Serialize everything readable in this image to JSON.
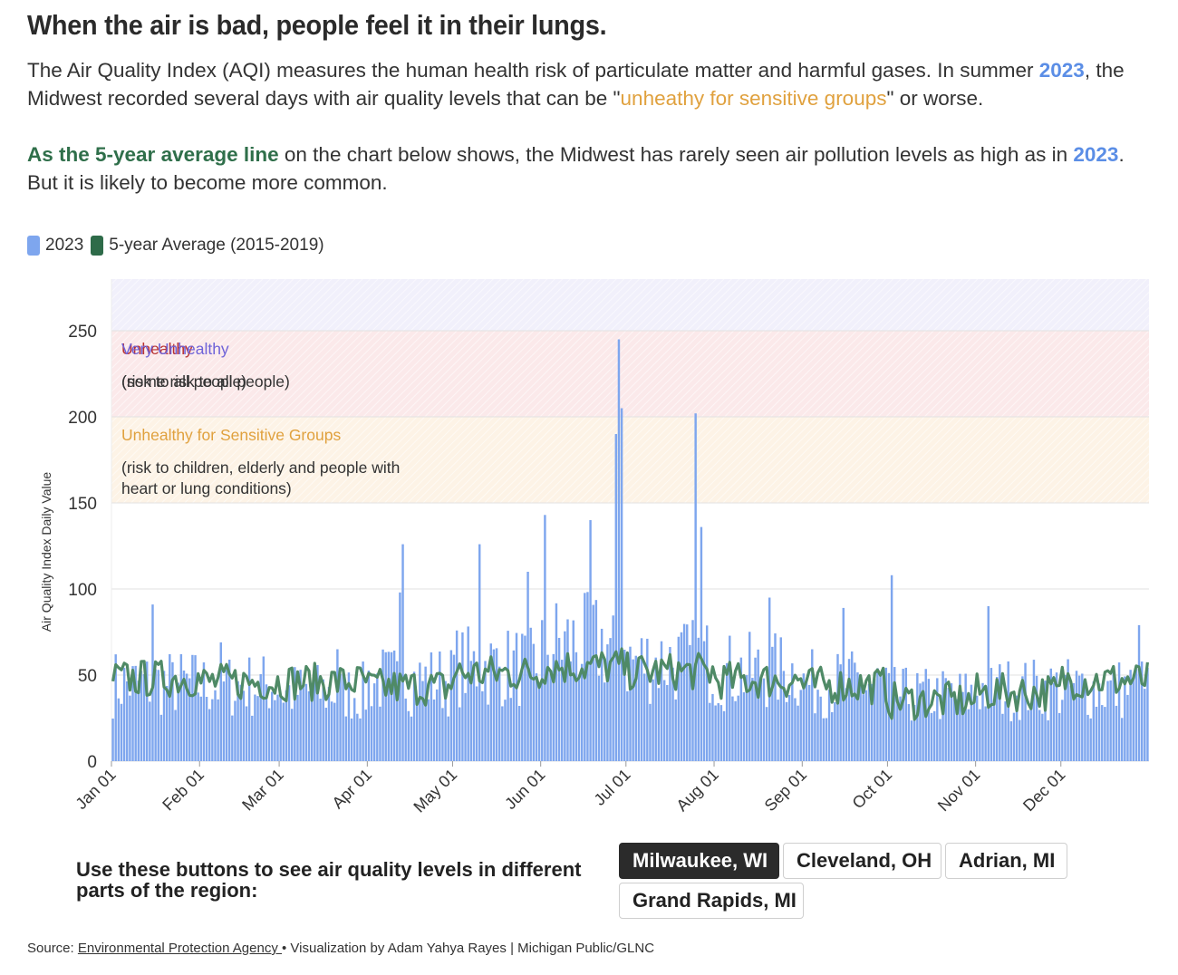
{
  "title": "When the air is bad, people feel it in their lungs.",
  "para1": {
    "t1": "The Air Quality Index (AQI) measures the human health risk of particulate matter and harmful gases. In summer ",
    "year": "2023",
    "t2": ", the Midwest recorded several days with air quality levels that can be \"",
    "usg": "unheathy for sensitive groups",
    "t3": "\" or worse."
  },
  "para2": {
    "avg": "As the 5-year average line",
    "t1": " on the chart below shows, the Midwest has rarely seen air pollution levels as high as in ",
    "year": "2023",
    "t2": ". But it is likely to become more common."
  },
  "legend": [
    {
      "label": "2023",
      "color": "#7ea6ee"
    },
    {
      "label": "5-year Average (2015-2019)",
      "color": "#2e6b49"
    }
  ],
  "controls": {
    "prompt": "Use these buttons to see air quality levels in different parts of the region:",
    "buttons": [
      "Milwaukee, WI",
      "Cleveland, OH",
      "Adrian, MI",
      "Grand Rapids, MI"
    ],
    "active": "Milwaukee, WI"
  },
  "source": {
    "prefix": "Source: ",
    "link": "Environmental Protection Agency ",
    "suffix": "• Visualization by Adam Yahya Rayes | Michigan Public/GLNC"
  },
  "chart_data": {
    "type": "bar",
    "ylabel": "Air Quality Index Daily Value",
    "ylim": [
      0,
      280
    ],
    "yticks": [
      0,
      50,
      100,
      150,
      200,
      250
    ],
    "grid": true,
    "x_tick_labels": [
      "Jan 01",
      "Feb 01",
      "Mar 01",
      "Apr 01",
      "May 01",
      "Jun 01",
      "Jul 01",
      "Aug 01",
      "Sep 01",
      "Oct 01",
      "Nov 01",
      "Dec 01"
    ],
    "bands": [
      {
        "from": 150,
        "to": 200,
        "label": "Unhealthy for Sensitive Groups",
        "note": "(risk to children, elderly and people with heart or lung conditions)",
        "color": "#e0a13e",
        "fill": "#fdf3e6"
      },
      {
        "from": 200,
        "to": 250,
        "label": "Unhealthy",
        "note": "(some risk to all people)",
        "color": "#b83232",
        "fill": "#fbe9ea"
      },
      {
        "from": 250,
        "to": 280,
        "label": "Very Unhealthy",
        "note": "(risk to all people)",
        "color": "#6f63d8",
        "fill": "#f1f0fb"
      }
    ],
    "series": [
      {
        "name": "2023",
        "type": "bar",
        "color": "#7ea6ee"
      },
      {
        "name": "5-year Average (2015-2019)",
        "type": "line",
        "color": "#4f8a66"
      }
    ],
    "monthly_2023": [
      {
        "month": "Jan",
        "typical": 45,
        "notable": [
          {
            "day": 15,
            "value": 91
          }
        ]
      },
      {
        "month": "Feb",
        "typical": 44,
        "notable": [
          {
            "day": 8,
            "value": 69
          }
        ]
      },
      {
        "month": "Mar",
        "typical": 40,
        "notable": [
          {
            "day": 21,
            "value": 65
          }
        ]
      },
      {
        "month": "Apr",
        "typical": 47,
        "notable": [
          {
            "day": 13,
            "value": 126
          },
          {
            "day": 12,
            "value": 98
          }
        ]
      },
      {
        "month": "May",
        "typical": 55,
        "notable": [
          {
            "day": 10,
            "value": 126
          },
          {
            "day": 27,
            "value": 110
          }
        ]
      },
      {
        "month": "Jun",
        "typical": 68,
        "notable": [
          {
            "day": 2,
            "value": 143
          },
          {
            "day": 18,
            "value": 140
          },
          {
            "day": 27,
            "value": 190
          },
          {
            "day": 28,
            "value": 245
          },
          {
            "day": 29,
            "value": 205
          }
        ]
      },
      {
        "month": "Jul",
        "typical": 58,
        "notable": [
          {
            "day": 25,
            "value": 202
          },
          {
            "day": 27,
            "value": 136
          }
        ]
      },
      {
        "month": "Aug",
        "typical": 52,
        "notable": [
          {
            "day": 20,
            "value": 95
          }
        ]
      },
      {
        "month": "Sep",
        "typical": 45,
        "notable": [
          {
            "day": 15,
            "value": 89
          }
        ]
      },
      {
        "month": "Oct",
        "typical": 38,
        "notable": [
          {
            "day": 2,
            "value": 108
          }
        ]
      },
      {
        "month": "Nov",
        "typical": 42,
        "notable": [
          {
            "day": 5,
            "value": 90
          }
        ]
      },
      {
        "month": "Dec",
        "typical": 42,
        "notable": [
          {
            "day": 28,
            "value": 79
          }
        ]
      }
    ],
    "avg_monthly": [
      {
        "month": "Jan",
        "value": 48
      },
      {
        "month": "Feb",
        "value": 46
      },
      {
        "month": "Mar",
        "value": 46
      },
      {
        "month": "Apr",
        "value": 43
      },
      {
        "month": "May",
        "value": 51
      },
      {
        "month": "Jun",
        "value": 55
      },
      {
        "month": "Jul",
        "value": 52
      },
      {
        "month": "Aug",
        "value": 47
      },
      {
        "month": "Sep",
        "value": 44
      },
      {
        "month": "Oct",
        "value": 35
      },
      {
        "month": "Nov",
        "value": 40
      },
      {
        "month": "Dec",
        "value": 47
      }
    ]
  }
}
